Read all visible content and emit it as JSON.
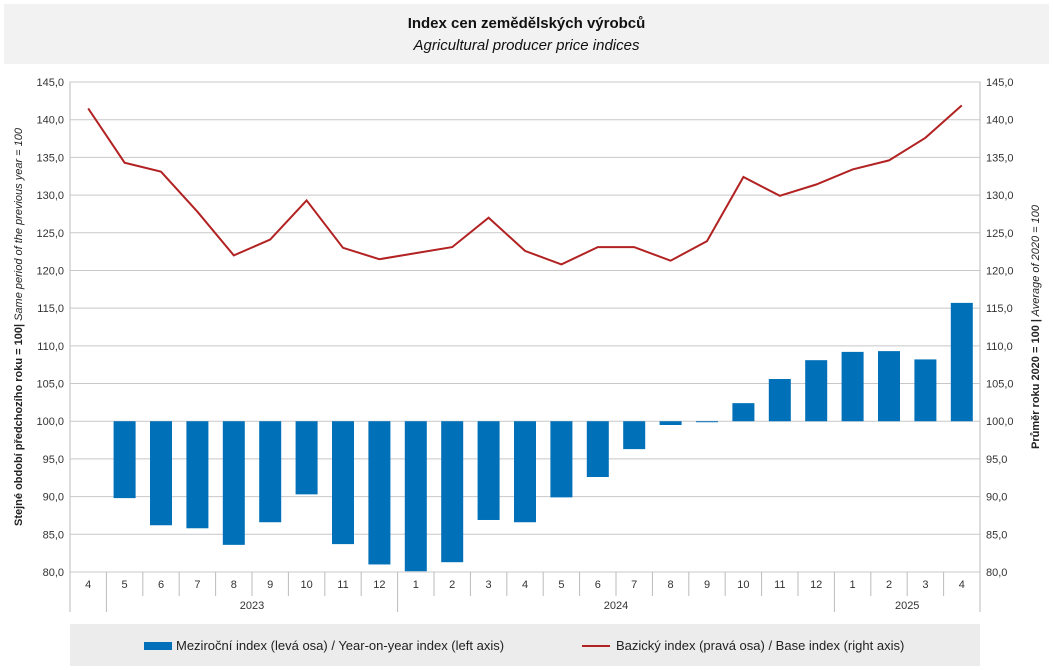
{
  "header": {
    "title": "Index cen zemědělských výrobců",
    "subtitle": "Agricultural producer price indices"
  },
  "axes": {
    "left_title_bold": "Stejné období předchozího roku = 100|",
    "left_title_italic": " Same period of  the previous year = 100",
    "right_title_bold": "Průměr roku 2020 = 100 |",
    "right_title_italic": " Average of 2020 = 100"
  },
  "legend": {
    "bar_label": "Meziroční index (levá osa) / Year-on-year index (left axis)",
    "line_label": "Bazický index (pravá osa) / Base index (right axis)"
  },
  "colors": {
    "bar": "#0070b8",
    "line": "#b22222",
    "grid": "#c8c8c8",
    "title_background": "#f2f2f2",
    "legend_background": "#ececec"
  },
  "chart_data": {
    "type": "bar",
    "title": "Index cen zemědělských výrobců",
    "subtitle": "Agricultural producer price indices",
    "categories": [
      "4",
      "5",
      "6",
      "7",
      "8",
      "9",
      "10",
      "11",
      "12",
      "1",
      "2",
      "3",
      "4",
      "5",
      "6",
      "7",
      "8",
      "9",
      "10",
      "11",
      "12",
      "1",
      "2",
      "3",
      "4"
    ],
    "year_groups": [
      {
        "label": "",
        "count": 1
      },
      {
        "label": "2023",
        "count": 8
      },
      {
        "label": "2024",
        "count": 12
      },
      {
        "label": "2025",
        "count": 4
      }
    ],
    "series": [
      {
        "name": "Meziroční index (levá osa) / Year-on-year index (left axis)",
        "type": "bar",
        "axis": "left",
        "values": [
          null,
          89.8,
          86.2,
          85.8,
          83.6,
          86.6,
          90.3,
          83.7,
          81.0,
          80.1,
          81.3,
          86.9,
          86.6,
          89.9,
          92.6,
          96.3,
          99.5,
          99.9,
          102.4,
          105.6,
          108.1,
          109.2,
          109.3,
          108.2,
          115.7
        ]
      },
      {
        "name": "Bazický index (pravá osa) / Base index (right axis)",
        "type": "line",
        "axis": "right",
        "values": [
          141.5,
          134.3,
          133.1,
          127.8,
          122.0,
          124.1,
          129.3,
          123.0,
          121.5,
          122.3,
          123.1,
          127.0,
          122.6,
          120.8,
          123.1,
          123.1,
          121.3,
          123.9,
          132.4,
          129.9,
          131.4,
          133.4,
          134.6,
          137.6,
          141.9
        ]
      }
    ],
    "ylim": [
      80,
      145
    ],
    "y2lim": [
      80,
      145
    ],
    "yticks": [
      "80,0",
      "85,0",
      "90,0",
      "95,0",
      "100,0",
      "105,0",
      "110,0",
      "115,0",
      "120,0",
      "125,0",
      "130,0",
      "135,0",
      "140,0",
      "145,0"
    ],
    "bar_baseline": 100,
    "grid": true,
    "legend_position": "bottom"
  }
}
